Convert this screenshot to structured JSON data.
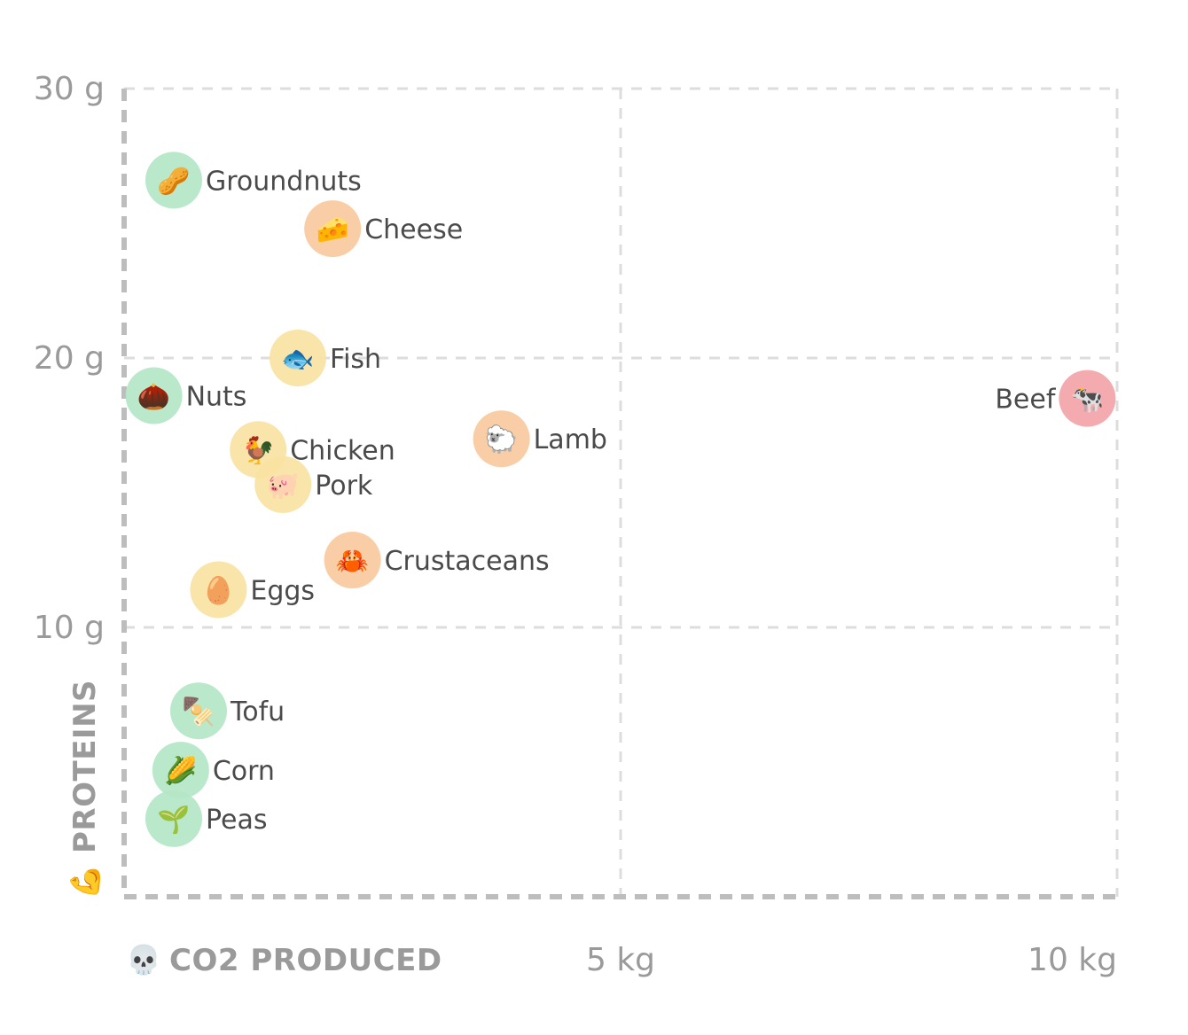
{
  "chart_data": {
    "type": "scatter",
    "x_axis": {
      "title": "CO2 PRODUCED",
      "title_icon": "💀",
      "icon_name": "skull-icon",
      "range": [
        0,
        10
      ],
      "ticks": [
        {
          "value": 5,
          "label": "5 kg"
        },
        {
          "value": 10,
          "label": "10 kg"
        }
      ]
    },
    "y_axis": {
      "title": "PROTEINS",
      "title_icon": "💪",
      "icon_name": "flexed-biceps-icon",
      "range": [
        0,
        30
      ],
      "ticks": [
        {
          "value": 10,
          "label": "10 g"
        },
        {
          "value": 20,
          "label": "20 g"
        },
        {
          "value": 30,
          "label": "30 g"
        }
      ]
    },
    "grid": true,
    "colors": {
      "green": "#b4e6c7",
      "yellow": "#f9e2a2",
      "orange": "#f8caa0",
      "red": "#f2a4a8",
      "grid": "#dddddd",
      "axis": "#bdbdbd"
    },
    "points": [
      {
        "name": "Groundnuts",
        "x": 0.5,
        "y": 26.6,
        "color": "green",
        "emoji": "🥜",
        "label_side": "right"
      },
      {
        "name": "Cheese",
        "x": 2.1,
        "y": 24.8,
        "color": "orange",
        "emoji": "🧀",
        "label_side": "right"
      },
      {
        "name": "Fish",
        "x": 1.75,
        "y": 20.0,
        "color": "yellow",
        "emoji": "🐟",
        "label_side": "right"
      },
      {
        "name": "Nuts",
        "x": 0.3,
        "y": 18.6,
        "color": "green",
        "emoji": "🌰",
        "label_side": "right"
      },
      {
        "name": "Beef",
        "x": 9.7,
        "y": 18.5,
        "color": "red",
        "emoji": "🐄",
        "label_side": "left"
      },
      {
        "name": "Lamb",
        "x": 3.8,
        "y": 17.0,
        "color": "orange",
        "emoji": "🐑",
        "label_side": "right"
      },
      {
        "name": "Chicken",
        "x": 1.35,
        "y": 16.6,
        "color": "yellow",
        "emoji": "🐓",
        "label_side": "right"
      },
      {
        "name": "Pork",
        "x": 1.6,
        "y": 15.3,
        "color": "yellow",
        "emoji": "🐖",
        "label_side": "right"
      },
      {
        "name": "Crustaceans",
        "x": 2.3,
        "y": 12.5,
        "color": "orange",
        "emoji": "🦀",
        "label_side": "right"
      },
      {
        "name": "Eggs",
        "x": 0.95,
        "y": 11.4,
        "color": "yellow",
        "emoji": "🥚",
        "label_side": "right"
      },
      {
        "name": "Tofu",
        "x": 0.75,
        "y": 6.9,
        "color": "green",
        "emoji": "🍢",
        "label_side": "right"
      },
      {
        "name": "Corn",
        "x": 0.57,
        "y": 4.7,
        "color": "green",
        "emoji": "🌽",
        "label_side": "right"
      },
      {
        "name": "Peas",
        "x": 0.5,
        "y": 2.9,
        "color": "green",
        "emoji": "🌱",
        "label_side": "right"
      }
    ]
  }
}
